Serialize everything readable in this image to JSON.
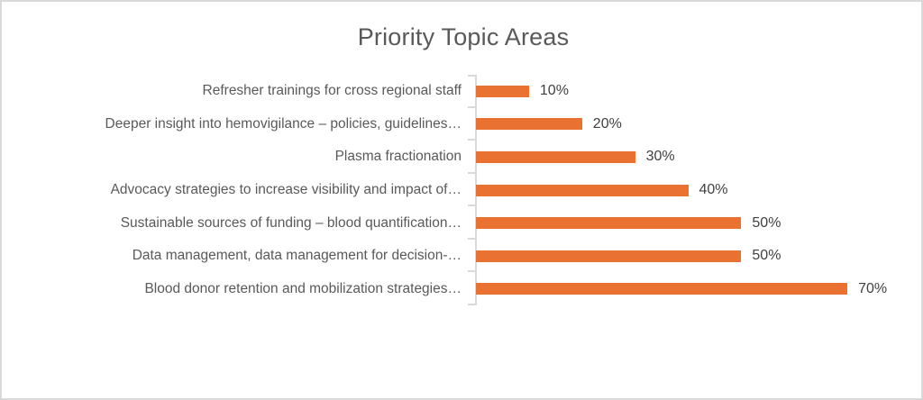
{
  "chart_data": {
    "type": "bar",
    "orientation": "horizontal",
    "title": "Priority Topic Areas",
    "categories": [
      "Refresher trainings for cross regional staff",
      "Deeper insight into hemovigilance – policies, guidelines…",
      "Plasma fractionation",
      "Advocacy strategies to increase visibility and impact of…",
      "Sustainable sources of funding – blood quantification…",
      "Data management, data management for decision-…",
      "Blood donor retention and mobilization strategies…"
    ],
    "values": [
      10,
      20,
      30,
      40,
      50,
      50,
      70
    ],
    "value_labels": [
      "10%",
      "20%",
      "30%",
      "40%",
      "50%",
      "50%",
      "70%"
    ],
    "xlabel": "",
    "ylabel": "",
    "xlim": [
      0,
      80
    ],
    "grid": false,
    "legend": false,
    "data_labels_shown": true,
    "colors": {
      "bar": "#e97132",
      "axis": "#d9d9d9",
      "title_text": "#595959",
      "category_text": "#595959",
      "value_text": "#404040",
      "frame_border": "#d9d9d9",
      "background": "#ffffff"
    }
  }
}
